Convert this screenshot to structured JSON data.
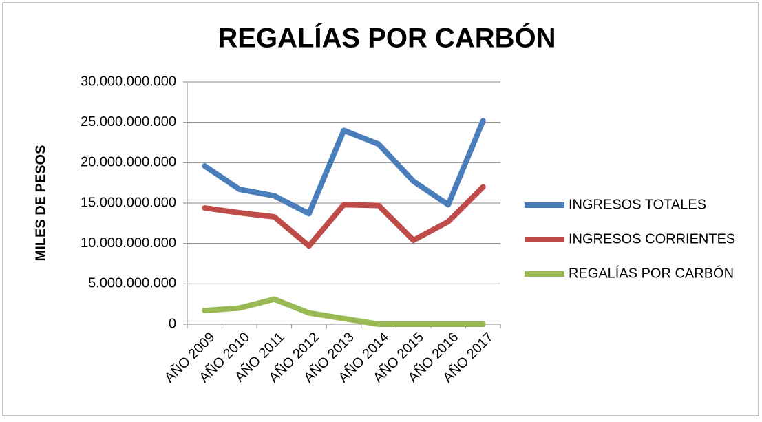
{
  "chart_data": {
    "type": "line",
    "title": "REGALÍAS POR CARBÓN",
    "y_label": "MILES DE PESOS",
    "categories": [
      "AÑO 2009",
      "AÑO 2010",
      "AÑO 2011",
      "AÑO 2012",
      "AÑO 2013",
      "AÑO 2014",
      "AÑO 2015",
      "AÑO 2016",
      "AÑO 2017"
    ],
    "series": [
      {
        "name": "INGRESOS TOTALES",
        "color": "#4a7ebb",
        "values": [
          19600000000,
          16700000000,
          15900000000,
          13700000000,
          24000000000,
          22300000000,
          17700000000,
          14800000000,
          25200000000
        ]
      },
      {
        "name": "INGRESOS CORRIENTES",
        "color": "#be4b48",
        "values": [
          14400000000,
          13800000000,
          13300000000,
          9700000000,
          14800000000,
          14700000000,
          10400000000,
          12700000000,
          17000000000
        ]
      },
      {
        "name": "REGALÍAS POR CARBÓN",
        "color": "#98b954",
        "values": [
          1700000000,
          2000000000,
          3100000000,
          1400000000,
          700000000,
          0,
          0,
          0,
          0
        ]
      }
    ],
    "ylim": [
      0,
      30000000000
    ],
    "yticks": [
      0,
      {
        "value": 5000000000,
        "label": "5.000.000.000"
      },
      {
        "value": 10000000000,
        "label": "10.000.000.000"
      },
      {
        "value": 15000000000,
        "label": "15.000.000.000"
      },
      {
        "value": 20000000000,
        "label": "20.000.000.000"
      },
      {
        "value": 25000000000,
        "label": "25.000.000.000"
      },
      {
        "value": 30000000000,
        "label": "30.000.000.000"
      }
    ],
    "grid": true,
    "legend": "right"
  }
}
